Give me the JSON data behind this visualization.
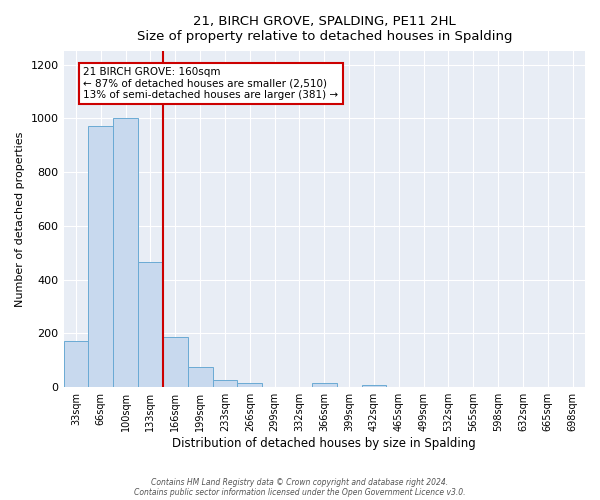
{
  "title": "21, BIRCH GROVE, SPALDING, PE11 2HL",
  "subtitle": "Size of property relative to detached houses in Spalding",
  "xlabel": "Distribution of detached houses by size in Spalding",
  "ylabel": "Number of detached properties",
  "bar_labels": [
    "33sqm",
    "66sqm",
    "100sqm",
    "133sqm",
    "166sqm",
    "199sqm",
    "233sqm",
    "266sqm",
    "299sqm",
    "332sqm",
    "366sqm",
    "399sqm",
    "432sqm",
    "465sqm",
    "499sqm",
    "532sqm",
    "565sqm",
    "598sqm",
    "632sqm",
    "665sqm",
    "698sqm"
  ],
  "bar_values": [
    170,
    970,
    1000,
    465,
    185,
    75,
    25,
    17,
    0,
    0,
    14,
    0,
    10,
    0,
    0,
    0,
    0,
    0,
    0,
    0,
    0
  ],
  "bar_color": "#c8d9ee",
  "bar_edge_color": "#6aaad4",
  "bg_color": "#e8edf5",
  "ylim": [
    0,
    1250
  ],
  "yticks": [
    0,
    200,
    400,
    600,
    800,
    1000,
    1200
  ],
  "property_line_x": 4,
  "property_line_color": "#cc0000",
  "annotation_title": "21 BIRCH GROVE: 160sqm",
  "annotation_line1": "← 87% of detached houses are smaller (2,510)",
  "annotation_line2": "13% of semi-detached houses are larger (381) →",
  "annotation_box_color": "#cc0000",
  "footer1": "Contains HM Land Registry data © Crown copyright and database right 2024.",
  "footer2": "Contains public sector information licensed under the Open Government Licence v3.0.",
  "n_bins": 21
}
